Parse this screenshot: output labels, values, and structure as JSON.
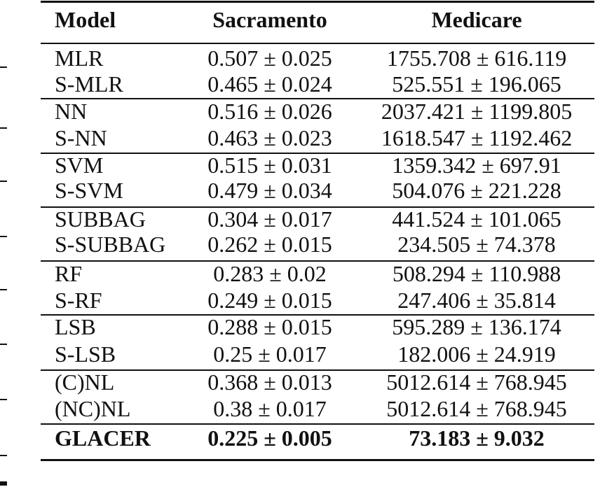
{
  "table": {
    "header": [
      "Model",
      "Sacramento",
      "Medicare"
    ],
    "rows": [
      [
        "MLR",
        "0.507 ± 0.025",
        "1755.708 ± 616.119"
      ],
      [
        "S-MLR",
        "0.465 ± 0.024",
        "525.551 ± 196.065"
      ],
      [
        "NN",
        "0.516 ± 0.026",
        "2037.421 ± 1199.805"
      ],
      [
        "S-NN",
        "0.463 ± 0.023",
        "1618.547 ± 1192.462"
      ],
      [
        "SVM",
        "0.515 ± 0.031",
        "1359.342 ± 697.91"
      ],
      [
        "S-SVM",
        "0.479 ± 0.034",
        "504.076 ± 221.228"
      ],
      [
        "SUBBAG",
        "0.304 ± 0.017",
        "441.524 ± 101.065"
      ],
      [
        "S-SUBBAG",
        "0.262 ± 0.015",
        "234.505 ± 74.378"
      ],
      [
        "RF",
        "0.283 ± 0.02",
        "508.294 ± 110.988"
      ],
      [
        "S-RF",
        "0.249 ± 0.015",
        "247.406 ± 35.814"
      ],
      [
        "LSB",
        "0.288 ± 0.015",
        "595.289 ± 136.174"
      ],
      [
        "S-LSB",
        "0.25 ± 0.017",
        "182.006 ± 24.919"
      ],
      [
        "(C)NL",
        "0.368 ± 0.013",
        "5012.614 ± 768.945"
      ],
      [
        "(NC)NL",
        "0.38 ± 0.017",
        "5012.614 ± 768.945"
      ],
      [
        "GLACER",
        "0.225 ± 0.005",
        "73.183 ± 9.032"
      ]
    ]
  }
}
